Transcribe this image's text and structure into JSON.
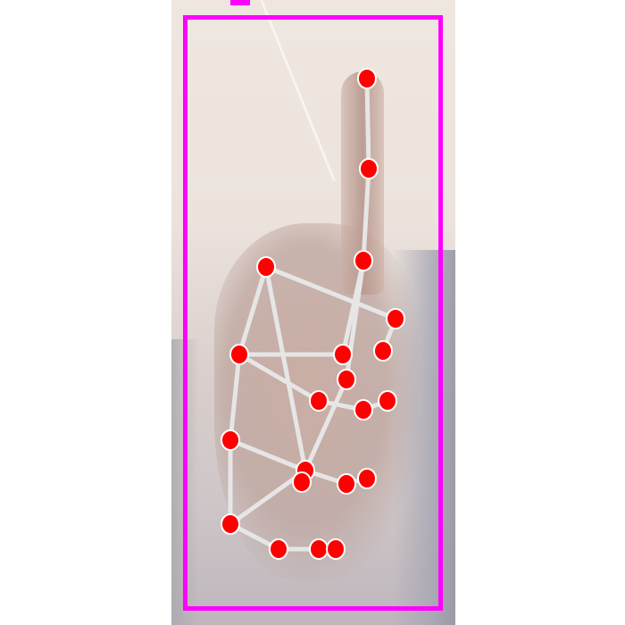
{
  "scene": {
    "description_class": "hand-pose-detection-frame",
    "bounding_box_color": "#ff00ff",
    "keypoint_color": "#ff0000",
    "skeleton_color": "#e6e6e6"
  },
  "landmarks": [
    {
      "id": 0,
      "name": "wrist"
    },
    {
      "id": 1,
      "name": "thumb-cmc"
    },
    {
      "id": 2,
      "name": "thumb-mcp"
    },
    {
      "id": 3,
      "name": "thumb-ip"
    },
    {
      "id": 4,
      "name": "thumb-tip"
    },
    {
      "id": 5,
      "name": "index-mcp"
    },
    {
      "id": 6,
      "name": "index-pip"
    },
    {
      "id": 7,
      "name": "index-dip"
    },
    {
      "id": 8,
      "name": "index-tip"
    },
    {
      "id": 9,
      "name": "middle-mcp"
    },
    {
      "id": 10,
      "name": "middle-pip"
    },
    {
      "id": 11,
      "name": "middle-dip"
    },
    {
      "id": 12,
      "name": "middle-tip"
    },
    {
      "id": 13,
      "name": "ring-mcp"
    },
    {
      "id": 14,
      "name": "ring-pip"
    },
    {
      "id": 15,
      "name": "ring-dip"
    },
    {
      "id": 16,
      "name": "ring-tip"
    },
    {
      "id": 17,
      "name": "pinky-mcp"
    },
    {
      "id": 18,
      "name": "pinky-pip"
    },
    {
      "id": 19,
      "name": "pinky-dip"
    },
    {
      "id": 20,
      "name": "pinky-tip"
    }
  ],
  "connections": [
    [
      0,
      1
    ],
    [
      1,
      2
    ],
    [
      2,
      3
    ],
    [
      3,
      4
    ],
    [
      0,
      5
    ],
    [
      5,
      6
    ],
    [
      6,
      7
    ],
    [
      7,
      8
    ],
    [
      5,
      9
    ],
    [
      9,
      10
    ],
    [
      10,
      11
    ],
    [
      11,
      12
    ],
    [
      9,
      13
    ],
    [
      13,
      14
    ],
    [
      14,
      15
    ],
    [
      15,
      16
    ],
    [
      13,
      17
    ],
    [
      17,
      18
    ],
    [
      18,
      19
    ],
    [
      19,
      20
    ],
    [
      0,
      17
    ]
  ]
}
